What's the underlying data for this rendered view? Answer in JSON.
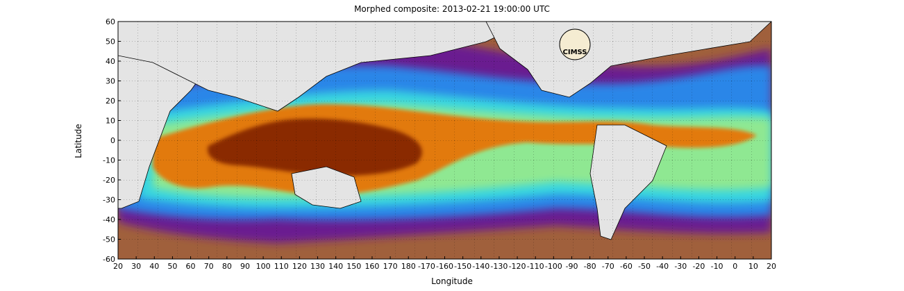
{
  "title": "Morphed composite: 2013-02-21 19:00:00 UTC",
  "x_axis": {
    "label": "Longitude",
    "tick_labels": [
      "20",
      "30",
      "40",
      "50",
      "60",
      "70",
      "80",
      "90",
      "100",
      "110",
      "120",
      "130",
      "140",
      "150",
      "160",
      "170",
      "180",
      "-170",
      "-160",
      "-150",
      "-140",
      "-130",
      "-120",
      "-110",
      "-100",
      "-90",
      "-80",
      "-70",
      "-60",
      "-50",
      "-40",
      "-30",
      "-20",
      "-10",
      "0",
      "10",
      "20"
    ]
  },
  "y_axis": {
    "label": "Latitude",
    "tick_labels": [
      "60",
      "50",
      "40",
      "30",
      "20",
      "10",
      "0",
      "-10",
      "-20",
      "-30",
      "-40",
      "-50",
      "-60"
    ]
  },
  "logo": {
    "text": "CIMSS"
  },
  "map": {
    "colors": {
      "land": "#e4e4e4",
      "coast": "#000000",
      "ocean_dry": "#a0603c",
      "purple": "#6a1f90",
      "blue": "#2a86e8",
      "cyan": "#39d6e0",
      "green": "#8fe892",
      "orange": "#e27a10",
      "dark_red": "#8a2c05"
    }
  }
}
